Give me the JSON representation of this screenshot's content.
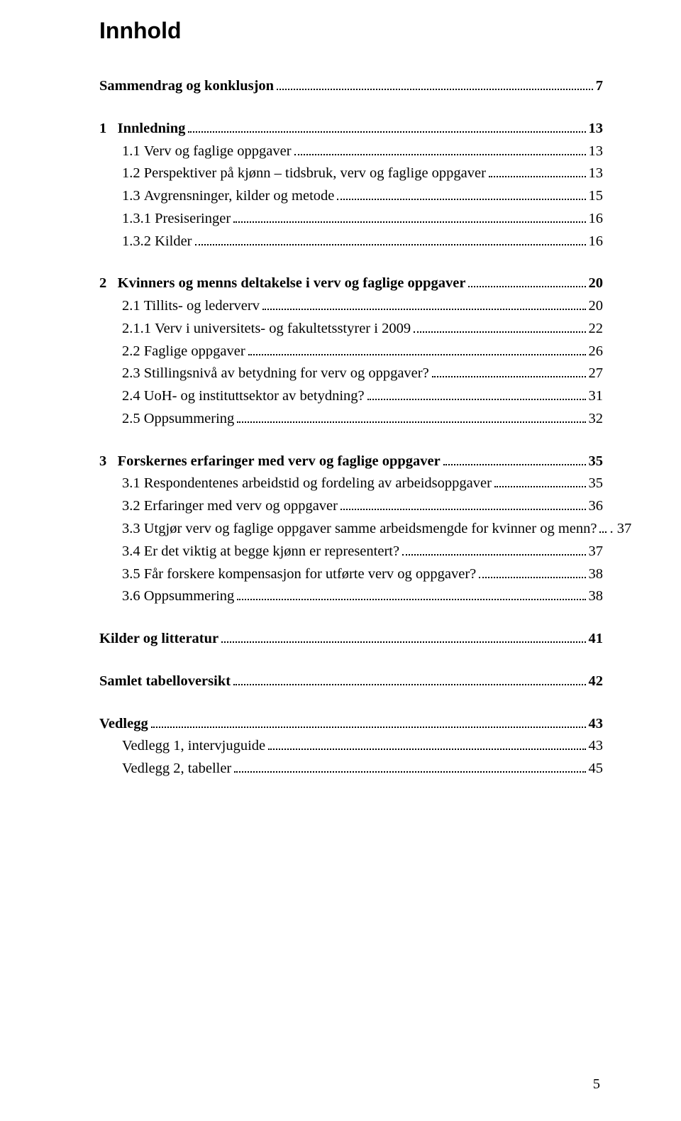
{
  "title": "Innhold",
  "page_number": "5",
  "colors": {
    "text": "#000000",
    "background": "#ffffff"
  },
  "typography": {
    "title_font": "Arial",
    "title_size_pt": 24,
    "title_weight": "bold",
    "body_font": "Times New Roman",
    "body_size_pt": 15
  },
  "toc": [
    {
      "kind": "block",
      "rows": [
        {
          "bold": true,
          "indent": 0,
          "num": "",
          "label": "Sammendrag og konklusjon",
          "page": "7"
        }
      ]
    },
    {
      "kind": "block",
      "rows": [
        {
          "bold": true,
          "indent": 0,
          "num": "1   ",
          "label": "Innledning",
          "page": "13"
        },
        {
          "bold": false,
          "indent": 1,
          "num": "1.1 ",
          "label": "Verv og faglige oppgaver",
          "page": "13"
        },
        {
          "bold": false,
          "indent": 1,
          "num": "1.2 ",
          "label": "Perspektiver på kjønn – tidsbruk, verv og faglige oppgaver",
          "page": "13"
        },
        {
          "bold": false,
          "indent": 1,
          "num": "1.3 ",
          "label": "Avgrensninger, kilder og metode",
          "page": "15"
        },
        {
          "bold": false,
          "indent": 2,
          "num": "1.3.1 ",
          "label": "Presiseringer",
          "page": "16"
        },
        {
          "bold": false,
          "indent": 2,
          "num": "1.3.2 ",
          "label": "Kilder",
          "page": "16"
        }
      ]
    },
    {
      "kind": "block",
      "rows": [
        {
          "bold": true,
          "indent": 0,
          "num": "2   ",
          "label": "Kvinners og menns deltakelse i verv og faglige oppgaver",
          "page": "20"
        },
        {
          "bold": false,
          "indent": 1,
          "num": "2.1 ",
          "label": "Tillits- og lederverv",
          "page": "20"
        },
        {
          "bold": false,
          "indent": 2,
          "num": "2.1.1 ",
          "label": "Verv i universitets- og fakultetsstyrer i 2009",
          "page": "22"
        },
        {
          "bold": false,
          "indent": 1,
          "num": "2.2 ",
          "label": "Faglige oppgaver",
          "page": "26"
        },
        {
          "bold": false,
          "indent": 1,
          "num": "2.3 ",
          "label": "Stillingsnivå av betydning for verv og oppgaver?",
          "page": "27"
        },
        {
          "bold": false,
          "indent": 1,
          "num": "2.4 ",
          "label": "UoH- og instituttsektor av betydning?",
          "page": "31"
        },
        {
          "bold": false,
          "indent": 1,
          "num": "2.5 ",
          "label": "Oppsummering",
          "page": "32"
        }
      ]
    },
    {
      "kind": "block",
      "rows": [
        {
          "bold": true,
          "indent": 0,
          "num": "3   ",
          "label": "Forskernes erfaringer med verv og faglige oppgaver",
          "page": "35"
        },
        {
          "bold": false,
          "indent": 1,
          "num": "3.1 ",
          "label": "Respondentenes arbeidstid og fordeling av arbeidsoppgaver",
          "page": "35"
        },
        {
          "bold": false,
          "indent": 1,
          "num": "3.2 ",
          "label": "Erfaringer med verv og oppgaver",
          "page": "36"
        },
        {
          "bold": false,
          "indent": 1,
          "num": "3.3 ",
          "label": "Utgjør verv og faglige oppgaver samme arbeidsmengde for kvinner og menn?",
          "page": ". 37"
        },
        {
          "bold": false,
          "indent": 1,
          "num": "3.4 ",
          "label": "Er det viktig at begge kjønn er representert?",
          "page": "37"
        },
        {
          "bold": false,
          "indent": 1,
          "num": "3.5 ",
          "label": "Får forskere kompensasjon for utførte verv og oppgaver?",
          "page": "38"
        },
        {
          "bold": false,
          "indent": 1,
          "num": "3.6 ",
          "label": "Oppsummering",
          "page": "38"
        }
      ]
    },
    {
      "kind": "block",
      "rows": [
        {
          "bold": true,
          "indent": 0,
          "num": "",
          "label": "Kilder og litteratur",
          "page": "41"
        }
      ]
    },
    {
      "kind": "block",
      "rows": [
        {
          "bold": true,
          "indent": 0,
          "num": "",
          "label": "Samlet tabelloversikt",
          "page": "42"
        }
      ]
    },
    {
      "kind": "block",
      "rows": [
        {
          "bold": true,
          "indent": 0,
          "num": "",
          "label": "Vedlegg",
          "page": "43"
        },
        {
          "bold": false,
          "indent": 1,
          "num": "",
          "label": "Vedlegg 1, intervjuguide",
          "page": "43"
        },
        {
          "bold": false,
          "indent": 1,
          "num": "",
          "label": "Vedlegg 2, tabeller",
          "page": "45"
        }
      ]
    }
  ]
}
